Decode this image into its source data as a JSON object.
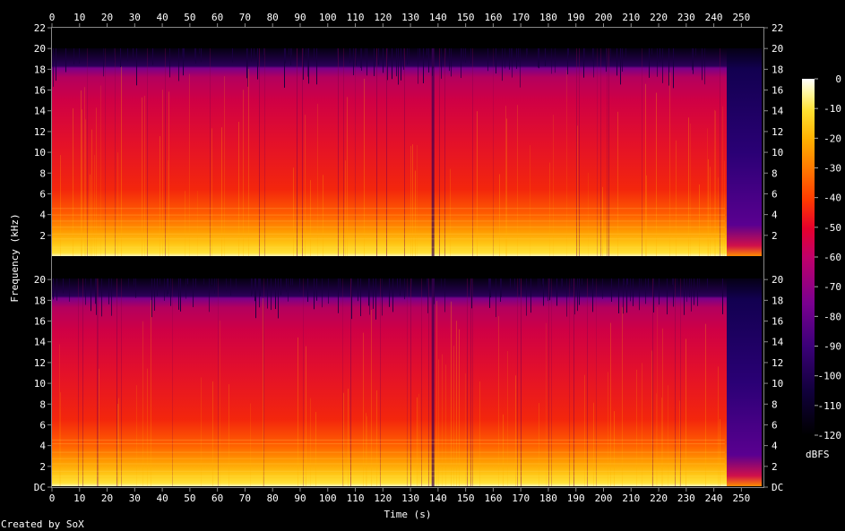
{
  "chart_data": {
    "type": "heatmap",
    "xlabel": "Time (s)",
    "ylabel": "Frequency (kHz)",
    "colorbar_label": "dBFS",
    "credit": "Created by SoX",
    "x_ticks": [
      "0",
      "10",
      "20",
      "30",
      "40",
      "50",
      "60",
      "70",
      "80",
      "90",
      "100",
      "110",
      "120",
      "130",
      "140",
      "150",
      "160",
      "170",
      "180",
      "190",
      "200",
      "210",
      "220",
      "230",
      "240",
      "250"
    ],
    "x_range": [
      0,
      258
    ],
    "y_ticks_upper": [
      "2",
      "4",
      "6",
      "8",
      "10",
      "12",
      "14",
      "16",
      "18",
      "20",
      "22"
    ],
    "y_ticks_lower": [
      "DC",
      "2",
      "4",
      "6",
      "8",
      "10",
      "12",
      "14",
      "16",
      "18",
      "20"
    ],
    "y_range_khz": [
      0,
      22
    ],
    "colorbar_ticks": [
      "0",
      "-10",
      "-20",
      "-30",
      "-40",
      "-50",
      "-60",
      "-70",
      "-80",
      "-90",
      "-100",
      "-110",
      "-120"
    ],
    "colorbar_range_dbfs": [
      -120,
      0
    ],
    "channels": 2,
    "audio_end_s": 244,
    "content_upper_limit_khz": 20,
    "quieter_section_start_s": 138,
    "colors": {
      "palette": [
        "#ffffff",
        "#fff07a",
        "#ffd21a",
        "#ff9c00",
        "#ff5a00",
        "#f21b10",
        "#d9003f",
        "#a8006e",
        "#6f0090",
        "#3a0078",
        "#140045",
        "#000000"
      ]
    }
  }
}
